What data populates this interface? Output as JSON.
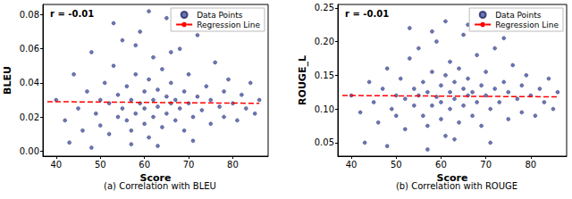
{
  "chart_data": [
    {
      "type": "scatter",
      "title": "(a) Correlation with BLEU",
      "annotation": "r = -0.01",
      "x_label": "Score",
      "y_label": "BLEU",
      "legend": "upper right",
      "xlim": [
        37,
        88
      ],
      "xticks": [
        40,
        50,
        60,
        70,
        80
      ],
      "ylim": [
        -0.003,
        0.086
      ],
      "yticks": [
        {
          "value": 0,
          "label": "0.00"
        },
        {
          "value": 0.02,
          "label": "0.02"
        },
        {
          "value": 0.04,
          "label": "0.04"
        },
        {
          "value": 0.06,
          "label": "0.06"
        },
        {
          "value": 0.08,
          "label": "0.08"
        }
      ],
      "series": [
        {
          "name": "Data Points",
          "type": "scatter",
          "color": "#3a4a9c",
          "marker": "circle",
          "x": [
            40,
            42,
            44,
            45,
            46,
            47,
            48,
            49,
            50,
            50,
            51,
            52,
            52,
            53,
            54,
            54,
            55,
            55,
            56,
            56,
            57,
            57,
            58,
            58,
            59,
            59,
            60,
            60,
            60,
            61,
            61,
            62,
            62,
            62,
            63,
            63,
            64,
            64,
            65,
            65,
            65,
            66,
            66,
            67,
            67,
            68,
            68,
            69,
            69,
            70,
            70,
            71,
            72,
            72,
            73,
            74,
            75,
            75,
            76,
            77,
            78,
            78,
            79,
            80,
            81,
            82,
            83,
            84,
            85,
            86,
            43,
            48,
            57,
            63,
            71,
            53,
            61,
            58,
            66,
            74
          ],
          "values": [
            0.03,
            0.018,
            0.045,
            0.025,
            0.012,
            0.035,
            0.058,
            0.022,
            0.03,
            0.015,
            0.04,
            0.028,
            0.01,
            0.05,
            0.02,
            0.033,
            0.025,
            0.065,
            0.018,
            0.038,
            0.03,
            0.012,
            0.045,
            0.022,
            0.028,
            0.07,
            0.035,
            0.016,
            0.025,
            0.042,
            0.008,
            0.03,
            0.02,
            0.055,
            0.026,
            0.036,
            0.014,
            0.048,
            0.032,
            0.022,
            0.078,
            0.028,
            0.04,
            0.018,
            0.03,
            0.06,
            0.025,
            0.035,
            0.012,
            0.028,
            0.045,
            0.02,
            0.032,
            0.068,
            0.024,
            0.038,
            0.016,
            0.03,
            0.052,
            0.026,
            0.035,
            0.02,
            0.042,
            0.028,
            0.018,
            0.033,
            0.025,
            0.04,
            0.022,
            0.03,
            0.005,
            0.002,
            0.004,
            0.003,
            0.006,
            0.075,
            0.082,
            0.062,
            0.058,
            0.072
          ]
        },
        {
          "name": "Regression Line",
          "type": "line",
          "color": "#ff0000",
          "line_style": "dashed",
          "x": [
            38,
            86
          ],
          "values": [
            0.029,
            0.028
          ]
        }
      ]
    },
    {
      "type": "scatter",
      "title": "(b) Correlation with ROUGE",
      "annotation": "r = -0.01",
      "x_label": "Score",
      "y_label": "ROUGE_L",
      "legend": "upper right",
      "xlim": [
        37,
        88
      ],
      "xticks": [
        40,
        50,
        60,
        70,
        80
      ],
      "ylim": [
        0.03,
        0.255
      ],
      "yticks": [
        {
          "value": 0.05,
          "label": "0.05"
        },
        {
          "value": 0.1,
          "label": "0.10"
        },
        {
          "value": 0.15,
          "label": "0.15"
        },
        {
          "value": 0.2,
          "label": "0.20"
        },
        {
          "value": 0.25,
          "label": "0.25"
        }
      ],
      "series": [
        {
          "name": "Data Points",
          "type": "scatter",
          "color": "#3a4a9c",
          "marker": "circle",
          "x": [
            40,
            42,
            44,
            45,
            46,
            47,
            48,
            49,
            50,
            50,
            51,
            52,
            52,
            53,
            54,
            54,
            55,
            55,
            56,
            56,
            57,
            57,
            58,
            58,
            59,
            59,
            60,
            60,
            60,
            61,
            61,
            62,
            62,
            62,
            63,
            63,
            64,
            64,
            65,
            65,
            65,
            66,
            66,
            67,
            67,
            68,
            68,
            69,
            69,
            70,
            70,
            71,
            72,
            72,
            73,
            74,
            75,
            75,
            76,
            77,
            78,
            78,
            79,
            80,
            81,
            82,
            83,
            84,
            85,
            86,
            43,
            48,
            57,
            63,
            71,
            53,
            61,
            58,
            66,
            74
          ],
          "values": [
            0.12,
            0.095,
            0.14,
            0.11,
            0.08,
            0.13,
            0.16,
            0.1,
            0.12,
            0.09,
            0.145,
            0.115,
            0.07,
            0.175,
            0.105,
            0.13,
            0.12,
            0.19,
            0.09,
            0.14,
            0.125,
            0.075,
            0.155,
            0.105,
            0.118,
            0.2,
            0.135,
            0.085,
            0.11,
            0.15,
            0.06,
            0.125,
            0.1,
            0.17,
            0.115,
            0.14,
            0.08,
            0.16,
            0.13,
            0.105,
            0.21,
            0.12,
            0.145,
            0.09,
            0.125,
            0.18,
            0.11,
            0.135,
            0.075,
            0.12,
            0.155,
            0.1,
            0.13,
            0.19,
            0.11,
            0.14,
            0.085,
            0.125,
            0.165,
            0.115,
            0.135,
            0.095,
            0.15,
            0.12,
            0.09,
            0.13,
            0.11,
            0.145,
            0.1,
            0.125,
            0.05,
            0.045,
            0.04,
            0.055,
            0.05,
            0.22,
            0.23,
            0.215,
            0.225,
            0.205
          ]
        },
        {
          "name": "Regression Line",
          "type": "line",
          "color": "#ff0000",
          "line_style": "dashed",
          "x": [
            38,
            86
          ],
          "values": [
            0.12,
            0.118
          ]
        }
      ]
    }
  ]
}
